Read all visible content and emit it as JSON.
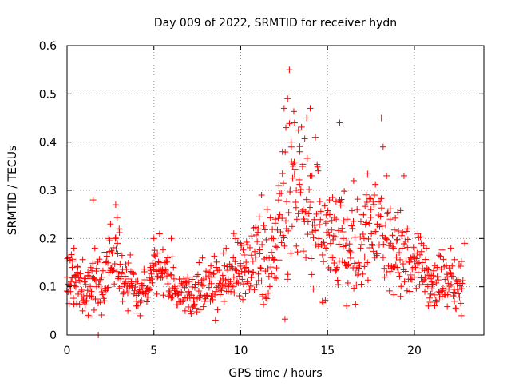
{
  "chart_data": {
    "type": "scatter",
    "title": "Day 009 of 2022, SRMTID for receiver hydn",
    "xlabel": "GPS time / hours",
    "ylabel": "SRMTID / TECUs",
    "xlim": [
      0,
      24
    ],
    "ylim": [
      0,
      0.6
    ],
    "xticks": [
      0,
      5,
      10,
      15,
      20
    ],
    "yticks": [
      0,
      0.1,
      0.2,
      0.3,
      0.4,
      0.5,
      0.6
    ],
    "xtick_labels": [
      "0",
      "5",
      "10",
      "15",
      "20"
    ],
    "ytick_labels": [
      "0",
      "0.1",
      "0.2",
      "0.3",
      "0.4",
      "0.5",
      "0.6"
    ],
    "grid": true,
    "colors": {
      "series": "#ff0000",
      "grid": "#999999",
      "axis": "#000000"
    },
    "series": [
      {
        "name": "SRMTID",
        "marker": "plus",
        "envelope_hours": [
          0,
          1,
          2,
          2.5,
          3,
          4,
          4.5,
          5,
          6,
          7,
          8,
          9,
          10,
          11,
          12,
          12.5,
          13,
          14,
          15,
          16,
          17,
          18,
          19,
          20,
          21,
          22,
          22.8
        ],
        "envelope_mean": [
          0.12,
          0.1,
          0.09,
          0.17,
          0.16,
          0.08,
          0.09,
          0.15,
          0.11,
          0.08,
          0.1,
          0.11,
          0.13,
          0.14,
          0.17,
          0.25,
          0.3,
          0.26,
          0.2,
          0.18,
          0.19,
          0.22,
          0.18,
          0.16,
          0.11,
          0.11,
          0.1
        ],
        "envelope_spread": [
          0.04,
          0.04,
          0.05,
          0.05,
          0.05,
          0.03,
          0.04,
          0.04,
          0.04,
          0.03,
          0.04,
          0.04,
          0.05,
          0.06,
          0.08,
          0.12,
          0.12,
          0.1,
          0.08,
          0.08,
          0.08,
          0.08,
          0.07,
          0.05,
          0.04,
          0.04,
          0.04
        ],
        "points": [
          [
            0.0,
            0.12
          ],
          [
            0.1,
            0.16
          ],
          [
            0.2,
            0.09
          ],
          [
            0.3,
            0.14
          ],
          [
            0.4,
            0.18
          ],
          [
            0.5,
            0.1
          ],
          [
            0.6,
            0.13
          ],
          [
            0.8,
            0.09
          ],
          [
            0.9,
            0.05
          ],
          [
            1.0,
            0.11
          ],
          [
            1.1,
            0.07
          ],
          [
            1.2,
            0.13
          ],
          [
            1.4,
            0.08
          ],
          [
            1.5,
            0.28
          ],
          [
            1.6,
            0.18
          ],
          [
            1.7,
            0.1
          ],
          [
            1.8,
            0.0
          ],
          [
            2.0,
            0.12
          ],
          [
            2.2,
            0.15
          ],
          [
            2.4,
            0.2
          ],
          [
            2.5,
            0.23
          ],
          [
            2.6,
            0.17
          ],
          [
            2.8,
            0.27
          ],
          [
            2.9,
            0.19
          ],
          [
            3.0,
            0.22
          ],
          [
            3.1,
            0.1
          ],
          [
            3.2,
            0.07
          ],
          [
            3.5,
            0.05
          ],
          [
            3.7,
            0.11
          ],
          [
            4.0,
            0.07
          ],
          [
            4.2,
            0.04
          ],
          [
            4.5,
            0.09
          ],
          [
            4.8,
            0.14
          ],
          [
            5.0,
            0.2
          ],
          [
            5.2,
            0.17
          ],
          [
            5.5,
            0.12
          ],
          [
            5.8,
            0.16
          ],
          [
            6.0,
            0.2
          ],
          [
            6.2,
            0.1
          ],
          [
            6.5,
            0.07
          ],
          [
            6.8,
            0.05
          ],
          [
            7.0,
            0.09
          ],
          [
            7.3,
            0.06
          ],
          [
            7.6,
            0.15
          ],
          [
            8.0,
            0.12
          ],
          [
            8.3,
            0.08
          ],
          [
            8.6,
            0.14
          ],
          [
            9.0,
            0.17
          ],
          [
            9.3,
            0.1
          ],
          [
            9.6,
            0.12
          ],
          [
            10.0,
            0.19
          ],
          [
            10.3,
            0.14
          ],
          [
            10.6,
            0.12
          ],
          [
            11.0,
            0.22
          ],
          [
            11.2,
            0.29
          ],
          [
            11.5,
            0.16
          ],
          [
            11.8,
            0.2
          ],
          [
            12.0,
            0.24
          ],
          [
            12.2,
            0.31
          ],
          [
            12.4,
            0.38
          ],
          [
            12.5,
            0.47
          ],
          [
            12.6,
            0.43
          ],
          [
            12.7,
            0.49
          ],
          [
            12.8,
            0.55
          ],
          [
            12.9,
            0.4
          ],
          [
            13.0,
            0.35
          ],
          [
            13.1,
            0.44
          ],
          [
            13.2,
            0.3
          ],
          [
            13.4,
            0.38
          ],
          [
            13.6,
            0.26
          ],
          [
            13.8,
            0.45
          ],
          [
            14.0,
            0.47
          ],
          [
            14.1,
            0.33
          ],
          [
            14.3,
            0.41
          ],
          [
            14.5,
            0.2
          ],
          [
            14.7,
            0.07
          ],
          [
            14.9,
            0.18
          ],
          [
            15.1,
            0.28
          ],
          [
            15.3,
            0.16
          ],
          [
            15.5,
            0.24
          ],
          [
            15.7,
            0.44
          ],
          [
            15.9,
            0.2
          ],
          [
            16.1,
            0.06
          ],
          [
            16.3,
            0.17
          ],
          [
            16.5,
            0.32
          ],
          [
            16.7,
            0.26
          ],
          [
            16.9,
            0.18
          ],
          [
            17.1,
            0.2
          ],
          [
            17.3,
            0.15
          ],
          [
            17.5,
            0.26
          ],
          [
            17.7,
            0.29
          ],
          [
            17.9,
            0.23
          ],
          [
            18.1,
            0.45
          ],
          [
            18.2,
            0.39
          ],
          [
            18.4,
            0.33
          ],
          [
            18.6,
            0.24
          ],
          [
            18.8,
            0.18
          ],
          [
            19.0,
            0.14
          ],
          [
            19.2,
            0.08
          ],
          [
            19.4,
            0.33
          ],
          [
            19.6,
            0.22
          ],
          [
            19.8,
            0.16
          ],
          [
            20.0,
            0.12
          ],
          [
            20.2,
            0.21
          ],
          [
            20.4,
            0.19
          ],
          [
            20.6,
            0.09
          ],
          [
            20.8,
            0.06
          ],
          [
            21.0,
            0.11
          ],
          [
            21.3,
            0.14
          ],
          [
            21.6,
            0.08
          ],
          [
            21.9,
            0.12
          ],
          [
            22.1,
            0.18
          ],
          [
            22.3,
            0.07
          ],
          [
            22.5,
            0.11
          ],
          [
            22.7,
            0.04
          ],
          [
            22.9,
            0.19
          ]
        ]
      }
    ]
  }
}
